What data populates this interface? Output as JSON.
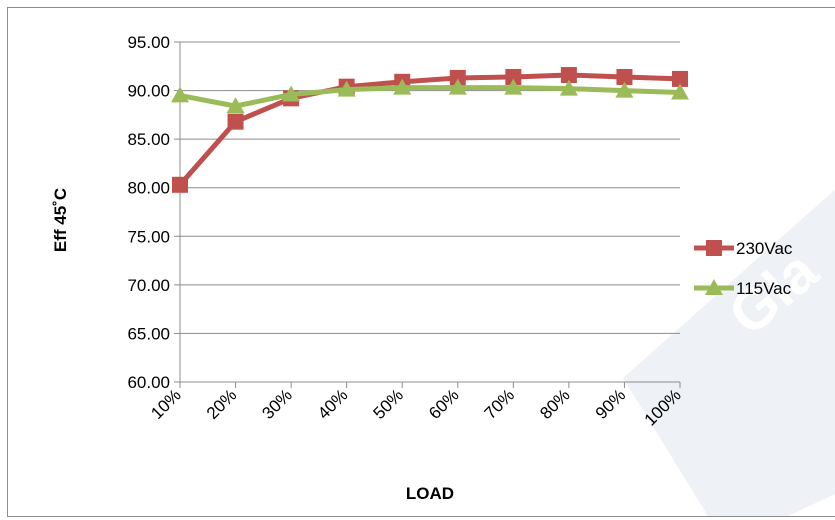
{
  "chart_data": {
    "type": "line",
    "xlabel": "LOAD",
    "ylabel": "Eff  45˚C",
    "categories": [
      "10%",
      "20%",
      "30%",
      "40%",
      "50%",
      "60%",
      "70%",
      "80%",
      "90%",
      "100%"
    ],
    "ylim": [
      60,
      95
    ],
    "yticks": [
      "95.00",
      "90.00",
      "85.00",
      "80.00",
      "75.00",
      "70.00",
      "65.00",
      "60.00"
    ],
    "grid": true,
    "legend_position": "right",
    "series": [
      {
        "name": "230Vac",
        "marker": "square",
        "color": "#c0504d",
        "values": [
          80.3,
          86.8,
          89.2,
          90.4,
          90.9,
          91.3,
          91.4,
          91.6,
          91.4,
          91.2
        ]
      },
      {
        "name": "115Vac",
        "marker": "triangle",
        "color": "#9bbb59",
        "values": [
          89.5,
          88.4,
          89.6,
          90.1,
          90.3,
          90.3,
          90.3,
          90.2,
          90.0,
          89.8
        ]
      }
    ]
  },
  "watermark": {
    "text": "Gla",
    "color": "#e9ecf3"
  }
}
